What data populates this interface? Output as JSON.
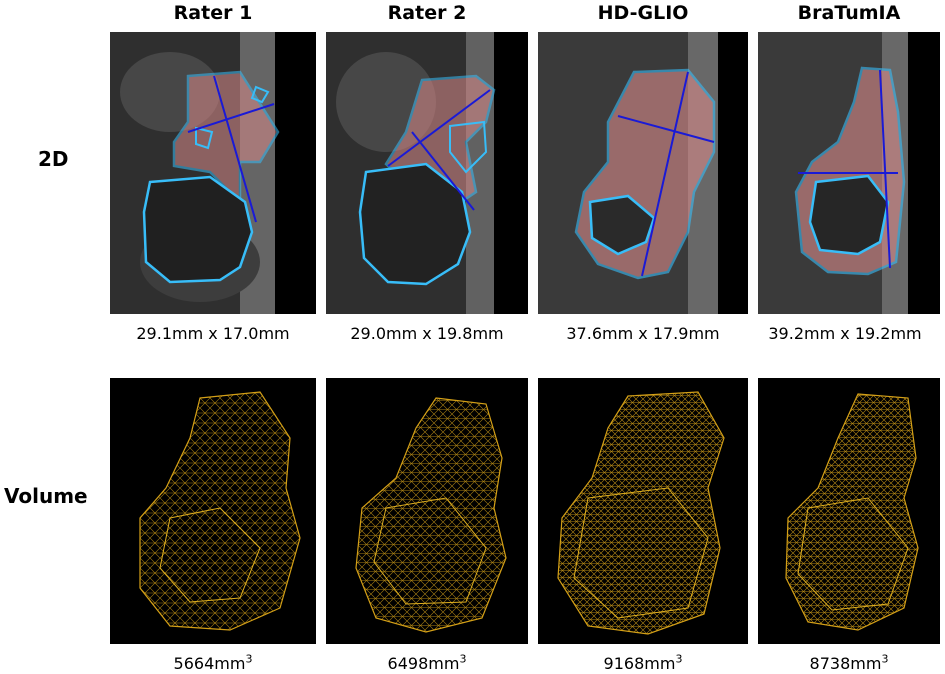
{
  "columns": [
    {
      "title": "Rater 1",
      "measurement_2d": "29.1mm x 17.0mm",
      "volume_value": "5664mm",
      "volume_exp": "3"
    },
    {
      "title": "Rater 2",
      "measurement_2d": "29.0mm x 19.8mm",
      "volume_value": "6498mm",
      "volume_exp": "3"
    },
    {
      "title": "HD-GLIO",
      "measurement_2d": "37.6mm x 17.9mm",
      "volume_value": "9168mm",
      "volume_exp": "3"
    },
    {
      "title": "BraTumIA",
      "measurement_2d": "39.2mm x 19.2mm",
      "volume_value": "8738mm",
      "volume_exp": "3"
    }
  ],
  "rows": {
    "top_label": "2D",
    "bottom_label": "Volume"
  },
  "colors": {
    "contour": "#38bdf8",
    "fill": "#d98a8a",
    "diameter": "#1a1ad6",
    "mesh": "#d4a017",
    "background_scan": "#3a3a3a"
  }
}
